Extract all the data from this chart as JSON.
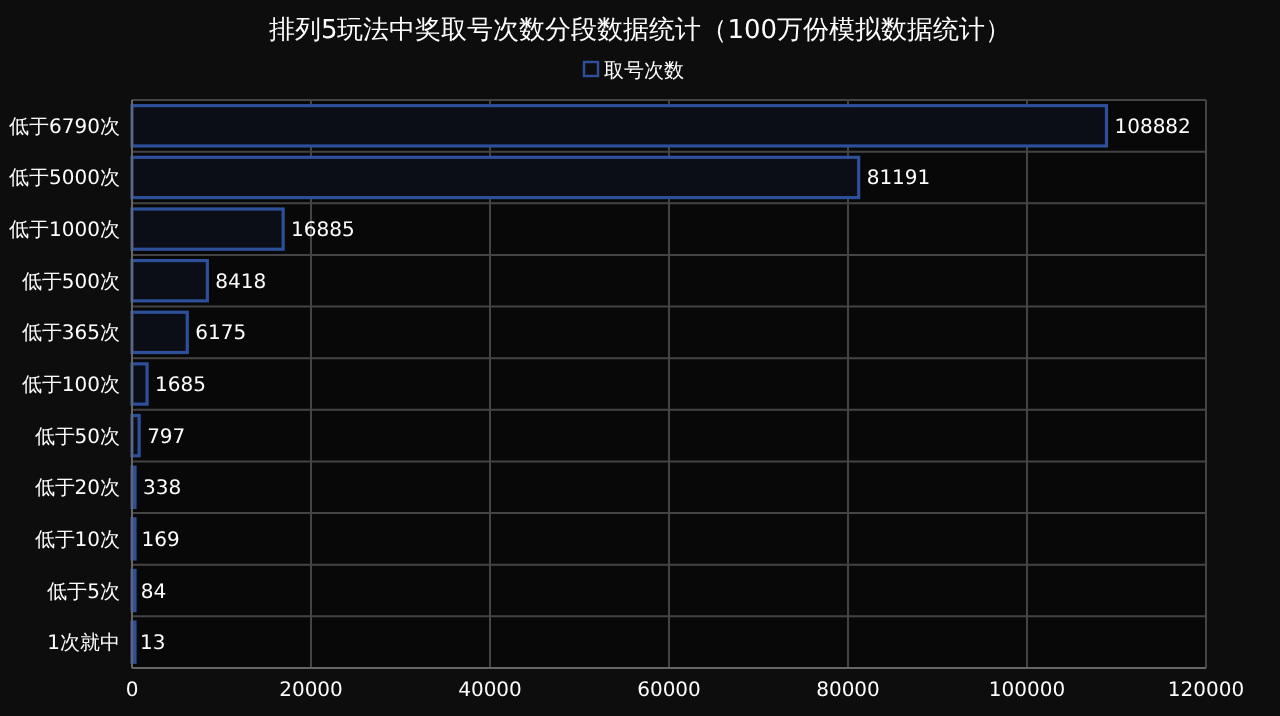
{
  "chart_data": {
    "type": "bar",
    "orientation": "horizontal",
    "title": "排列5玩法中奖取号次数分段数据统计（100万份模拟数据统计）",
    "categories": [
      "低于6790次",
      "低于5000次",
      "低于1000次",
      "低于500次",
      "低于365次",
      "低于100次",
      "低于50次",
      "低于20次",
      "低于10次",
      "低于5次",
      "1次就中"
    ],
    "series": [
      {
        "name": "取号次数",
        "color": "#2e4f9a",
        "values": [
          108882,
          81191,
          16885,
          8418,
          6175,
          1685,
          797,
          338,
          169,
          84,
          13
        ]
      }
    ],
    "xlim": [
      0,
      120000
    ],
    "xticks": [
      0,
      20000,
      40000,
      60000,
      80000,
      100000,
      120000
    ],
    "grid": true,
    "legend": "top",
    "data_labels": true
  }
}
